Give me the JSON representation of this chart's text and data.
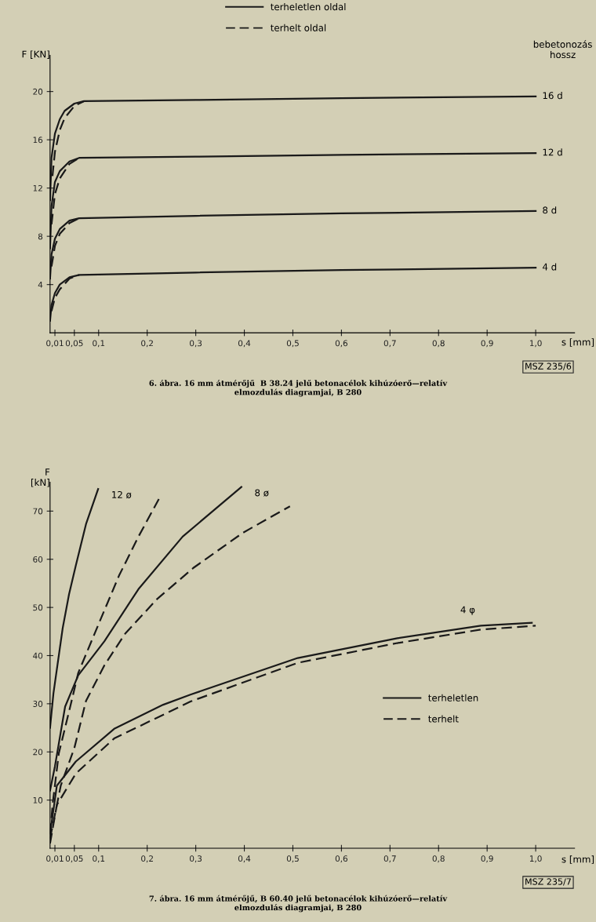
{
  "chart_data": [
    {
      "type": "line",
      "xlabel": "s [mm]",
      "ylabel": "F [KN]",
      "legend": "top",
      "marker": "none",
      "grid": false,
      "xlim": [
        0,
        1.08
      ],
      "ylim": [
        0,
        23
      ],
      "xticks": [
        {
          "value": 0.01,
          "label": "0,01"
        },
        {
          "value": 0.05,
          "label": "0,05"
        },
        {
          "value": 0.1,
          "label": "0,1"
        },
        {
          "value": 0.2,
          "label": "0,2"
        },
        {
          "value": 0.3,
          "label": "0,3"
        },
        {
          "value": 0.4,
          "label": "0,4"
        },
        {
          "value": 0.5,
          "label": "0,5"
        },
        {
          "value": 0.6,
          "label": "0,6"
        },
        {
          "value": 0.7,
          "label": "0,7"
        },
        {
          "value": 0.8,
          "label": "0,8"
        },
        {
          "value": 0.9,
          "label": "0,9"
        },
        {
          "value": 1.0,
          "label": "1,0"
        }
      ],
      "yticks": [
        4,
        8,
        12,
        16,
        20
      ],
      "series": [
        {
          "name": "terheletlen oldal",
          "color": "#1a1a1a",
          "line_style": "solid",
          "x": [
            0,
            0.003,
            0.01,
            0.02,
            0.03,
            0.05,
            0.07,
            0.3,
            0.6,
            1.0
          ],
          "values": [
            11,
            14.5,
            16.5,
            17.7,
            18.4,
            19.0,
            19.2,
            19.3,
            19.45,
            19.6
          ]
        },
        {
          "name": "terhelt oldal",
          "color": "#1a1a1a",
          "line_style": "dashed",
          "x": [
            0.005,
            0.01,
            0.02,
            0.03,
            0.05,
            0.07
          ],
          "values": [
            13,
            15.0,
            16.8,
            17.8,
            18.8,
            19.2
          ]
        },
        {
          "color": "#1a1a1a",
          "line_style": "solid",
          "x": [
            0,
            0.003,
            0.01,
            0.02,
            0.04,
            0.06,
            0.3,
            0.6,
            1.0
          ],
          "values": [
            7,
            10.5,
            12.5,
            13.4,
            14.2,
            14.5,
            14.6,
            14.75,
            14.9
          ]
        },
        {
          "color": "#1a1a1a",
          "line_style": "dashed",
          "x": [
            0.003,
            0.01,
            0.02,
            0.04,
            0.06
          ],
          "values": [
            9,
            11.5,
            12.8,
            14.0,
            14.5
          ]
        },
        {
          "color": "#1a1a1a",
          "line_style": "solid",
          "x": [
            0,
            0.003,
            0.01,
            0.02,
            0.04,
            0.06,
            0.3,
            0.6,
            1.0
          ],
          "values": [
            4.5,
            6.5,
            7.8,
            8.6,
            9.3,
            9.5,
            9.7,
            9.9,
            10.1
          ]
        },
        {
          "color": "#1a1a1a",
          "line_style": "dashed",
          "x": [
            0.003,
            0.01,
            0.02,
            0.04,
            0.06
          ],
          "values": [
            5.5,
            7.2,
            8.2,
            9.1,
            9.5
          ]
        },
        {
          "color": "#1a1a1a",
          "line_style": "solid",
          "x": [
            0,
            0.003,
            0.01,
            0.02,
            0.04,
            0.06,
            0.3,
            0.6,
            1.0
          ],
          "values": [
            1,
            2.3,
            3.3,
            4.0,
            4.6,
            4.8,
            5.0,
            5.2,
            5.4
          ]
        },
        {
          "color": "#1a1a1a",
          "line_style": "dashed",
          "x": [
            0.003,
            0.01,
            0.02,
            0.04,
            0.06
          ],
          "values": [
            1.8,
            2.9,
            3.6,
            4.5,
            4.8
          ]
        }
      ],
      "annotations": [
        {
          "text": "16 d",
          "x": 1.0,
          "y": 19.6
        },
        {
          "text": "12 d",
          "x": 1.0,
          "y": 14.9
        },
        {
          "text": "8 d",
          "x": 1.0,
          "y": 10.1
        },
        {
          "text": "4 d",
          "x": 1.0,
          "y": 5.4
        },
        "bebetonozás\nhossz",
        "MSZ 235/6",
        "6. ábra. 16 mm átmérőjű  B 38.24 jelű betonacélok kihúzóerő—relatív\nelmozdulás diagramjai, B 280"
      ]
    },
    {
      "type": "line",
      "xlabel": "s [mm]",
      "ylabel": "F\n[kN]",
      "legend": "right",
      "marker": "none",
      "grid": false,
      "xlim": [
        0,
        1.08
      ],
      "ylim": [
        0,
        76
      ],
      "xticks": [
        {
          "value": 0.01,
          "label": "0,01"
        },
        {
          "value": 0.05,
          "label": "0,05"
        },
        {
          "value": 0.1,
          "label": "0,1"
        },
        {
          "value": 0.2,
          "label": "0,2"
        },
        {
          "value": 0.3,
          "label": "0,3"
        },
        {
          "value": 0.4,
          "label": "0,4"
        },
        {
          "value": 0.5,
          "label": "0,5"
        },
        {
          "value": 0.6,
          "label": "0,6"
        },
        {
          "value": 0.7,
          "label": "0,7"
        },
        {
          "value": 0.8,
          "label": "0,8"
        },
        {
          "value": 0.9,
          "label": "0,9"
        },
        {
          "value": 1.0,
          "label": "1,0"
        }
      ],
      "yticks": [
        10,
        20,
        30,
        40,
        50,
        60,
        70
      ],
      "series": [
        {
          "name": "terheletlen",
          "color": "#1a1a1a",
          "line_style": "solid",
          "x": [
            0,
            0.007,
            0.026,
            0.039,
            0.053,
            0.074,
            0.099
          ],
          "values": [
            25,
            32.2,
            45.7,
            52.7,
            58.7,
            67.3,
            74.6
          ]
        },
        {
          "name": "terhelt",
          "color": "#1a1a1a",
          "line_style": "dashed",
          "x": [
            0,
            0.006,
            0.018,
            0.042,
            0.058,
            0.101,
            0.142,
            0.182,
            0.224
          ],
          "values": [
            3,
            9.8,
            19.7,
            29.6,
            36.4,
            46.8,
            56.6,
            64.7,
            72.5
          ]
        },
        {
          "color": "#1a1a1a",
          "line_style": "solid",
          "x": [
            0,
            0.01,
            0.031,
            0.058,
            0.112,
            0.182,
            0.273,
            0.394
          ],
          "values": [
            12,
            17,
            29.4,
            35.9,
            43,
            53.8,
            64.7,
            75
          ]
        },
        {
          "color": "#1a1a1a",
          "line_style": "dashed",
          "x": [
            0,
            0.022,
            0.05,
            0.074,
            0.112,
            0.155,
            0.22,
            0.295,
            0.397,
            0.494
          ],
          "values": [
            2,
            13,
            20.8,
            30.6,
            38,
            44.6,
            51.7,
            58.2,
            65.5,
            71
          ]
        },
        {
          "color": "#1a1a1a",
          "line_style": "solid",
          "x": [
            0,
            0.014,
            0.053,
            0.132,
            0.233,
            0.289,
            0.51,
            0.715,
            0.887,
            0.992
          ],
          "values": [
            3,
            13,
            18,
            24.8,
            29.8,
            31.9,
            39.5,
            43.6,
            46.2,
            46.8
          ]
        },
        {
          "color": "#1a1a1a",
          "line_style": "dashed",
          "x": [
            0,
            0.014,
            0.053,
            0.132,
            0.29,
            0.51,
            0.715,
            0.887,
            1.0
          ],
          "values": [
            1,
            9,
            15.5,
            22.8,
            30.5,
            38.5,
            42.6,
            45.4,
            46.2
          ]
        }
      ],
      "annotations": [
        {
          "text": "12 ø",
          "x": 0.099,
          "y": 74.6
        },
        {
          "text": "8 ø",
          "x": 0.394,
          "y": 75
        },
        {
          "text": "4 φ",
          "x": 0.887,
          "y": 46.2
        },
        "MSZ 235/7",
        "7. ábra. 16 mm átmérőjű, B 60.40 jelű betonacélok kihúzóerő—relatív\nelmozdulás diagramjai, B 280"
      ]
    }
  ]
}
